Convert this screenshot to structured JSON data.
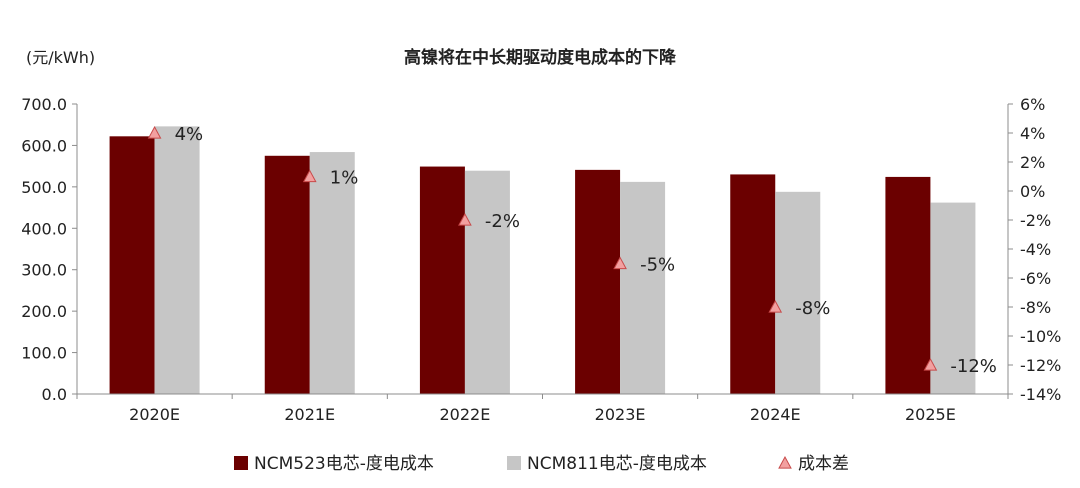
{
  "chart_data": {
    "type": "bar",
    "title": "高镍将在中长期驱动度电成本的下降",
    "ylabel": "(元/kWh)",
    "categories": [
      "2020E",
      "2021E",
      "2022E",
      "2023E",
      "2024E",
      "2025E"
    ],
    "series": [
      {
        "name": "NCM523电芯-度电成本",
        "type": "bar",
        "axis": "left",
        "values": [
          622,
          575,
          549,
          541,
          530,
          524
        ]
      },
      {
        "name": "NCM811电芯-度电成本",
        "type": "bar",
        "axis": "left",
        "values": [
          646,
          584,
          539,
          512,
          488,
          462
        ]
      },
      {
        "name": "成本差",
        "type": "scatter",
        "axis": "right",
        "values": [
          4,
          1,
          -2,
          -5,
          -8,
          -12
        ],
        "labels": [
          "4%",
          "1%",
          "-2%",
          "-5%",
          "-8%",
          "-12%"
        ]
      }
    ],
    "y_left": {
      "min": 0,
      "max": 700,
      "ticks": [
        0,
        100,
        200,
        300,
        400,
        500,
        600,
        700
      ],
      "tick_labels": [
        "0.0",
        "100.0",
        "200.0",
        "300.0",
        "400.0",
        "500.0",
        "600.0",
        "700.0"
      ]
    },
    "y_right": {
      "min": -14,
      "max": 6,
      "ticks": [
        -14,
        -12,
        -10,
        -8,
        -6,
        -4,
        -2,
        0,
        2,
        4,
        6
      ],
      "tick_labels": [
        "-14%",
        "-12%",
        "-10%",
        "-8%",
        "-6%",
        "-4%",
        "-2%",
        "0%",
        "2%",
        "4%",
        "6%"
      ]
    },
    "grid": false,
    "legend_position": "bottom",
    "colors": {
      "ncm523": "#6b0000",
      "ncm811": "#c6c6c6",
      "marker_fill": "#f2a0a0",
      "marker_stroke": "#c84a4a",
      "axis": "#8c8c8c"
    }
  }
}
